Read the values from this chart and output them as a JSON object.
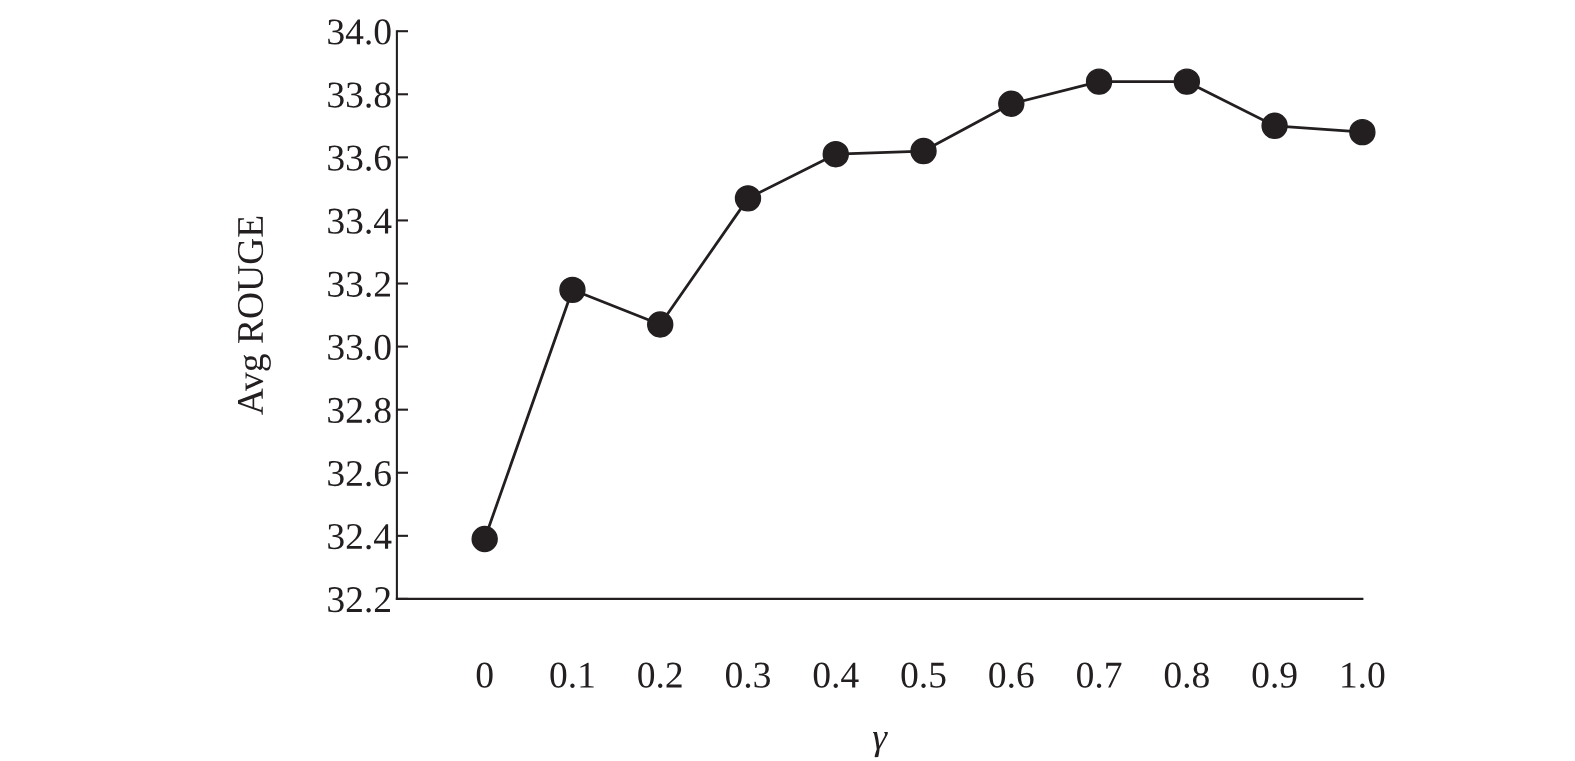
{
  "chart_data": {
    "type": "line",
    "xlabel": "γ",
    "ylabel": "Avg ROUGE",
    "x": [
      0,
      0.1,
      0.2,
      0.3,
      0.4,
      0.5,
      0.6,
      0.7,
      0.8,
      0.9,
      1.0
    ],
    "series": [
      {
        "color": "#231f20",
        "values": [
          32.39,
          33.18,
          33.07,
          33.47,
          33.61,
          33.62,
          33.77,
          33.84,
          33.84,
          33.7,
          33.68
        ]
      }
    ],
    "xlim": [
      -0.1,
      1.0
    ],
    "xticks": [
      0,
      0.1,
      0.2,
      0.3,
      0.4,
      0.5,
      0.6,
      0.7,
      0.8,
      0.9,
      {
        "value": 1.0,
        "label": "1.0"
      }
    ],
    "ylim": [
      32.2,
      34.0
    ],
    "yticks": [
      32.2,
      32.4,
      32.6,
      32.8,
      {
        "value": 33.0,
        "label": "33.0"
      },
      33.2,
      33.4,
      33.6,
      33.8,
      {
        "value": 34.0,
        "label": "34.0"
      }
    ],
    "marker": "circle",
    "line_style": "solid"
  }
}
